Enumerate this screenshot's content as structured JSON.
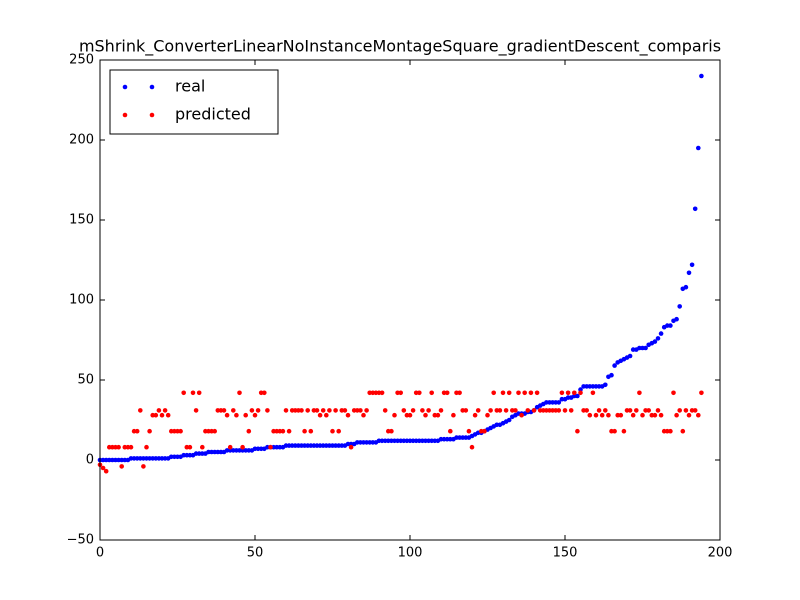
{
  "chart_data": {
    "type": "scatter",
    "title": "mShrink_ConverterLinearNoInstanceMontageSquare_gradientDescent_comparis",
    "xlim": [
      0,
      200
    ],
    "ylim": [
      -50,
      250
    ],
    "xticks": [
      0,
      50,
      100,
      150,
      200
    ],
    "yticks": [
      {
        "value": -50,
        "label": "−50"
      },
      0,
      50,
      100,
      150,
      200,
      250
    ],
    "legend": "upper left",
    "x": [
      0,
      1,
      2,
      3,
      4,
      5,
      6,
      7,
      8,
      9,
      10,
      11,
      12,
      13,
      14,
      15,
      16,
      17,
      18,
      19,
      20,
      21,
      22,
      23,
      24,
      25,
      26,
      27,
      28,
      29,
      30,
      31,
      32,
      33,
      34,
      35,
      36,
      37,
      38,
      39,
      40,
      41,
      42,
      43,
      44,
      45,
      46,
      47,
      48,
      49,
      50,
      51,
      52,
      53,
      54,
      55,
      56,
      57,
      58,
      59,
      60,
      61,
      62,
      63,
      64,
      65,
      66,
      67,
      68,
      69,
      70,
      71,
      72,
      73,
      74,
      75,
      76,
      77,
      78,
      79,
      80,
      81,
      82,
      83,
      84,
      85,
      86,
      87,
      88,
      89,
      90,
      91,
      92,
      93,
      94,
      95,
      96,
      97,
      98,
      99,
      100,
      101,
      102,
      103,
      104,
      105,
      106,
      107,
      108,
      109,
      110,
      111,
      112,
      113,
      114,
      115,
      116,
      117,
      118,
      119,
      120,
      121,
      122,
      123,
      124,
      125,
      126,
      127,
      128,
      129,
      130,
      131,
      132,
      133,
      134,
      135,
      136,
      137,
      138,
      139,
      140,
      141,
      142,
      143,
      144,
      145,
      146,
      147,
      148,
      149,
      150,
      151,
      152,
      153,
      154,
      155,
      156,
      157,
      158,
      159,
      160,
      161,
      162,
      163,
      164,
      165,
      166,
      167,
      168,
      169,
      170,
      171,
      172,
      173,
      174,
      175,
      176,
      177,
      178,
      179,
      180,
      181,
      182,
      183,
      184,
      185,
      186,
      187,
      188,
      189,
      190,
      191,
      192,
      193,
      194
    ],
    "series": [
      {
        "name": "real",
        "color": "#0000ff",
        "values": [
          0,
          0,
          0,
          0,
          0,
          0,
          0,
          0,
          0,
          0,
          1,
          1,
          1,
          1,
          1,
          1,
          1,
          1,
          1,
          1,
          1,
          1,
          1,
          2,
          2,
          2,
          2,
          3,
          3,
          3,
          3,
          4,
          4,
          4,
          4,
          5,
          5,
          5,
          5,
          5,
          5,
          6,
          6,
          6,
          6,
          6,
          6,
          6,
          6,
          6,
          7,
          7,
          7,
          7,
          8,
          8,
          8,
          8,
          8,
          8,
          9,
          9,
          9,
          9,
          9,
          9,
          9,
          9,
          9,
          9,
          9,
          9,
          9,
          9,
          9,
          9,
          9,
          9,
          9,
          9,
          10,
          10,
          10,
          11,
          11,
          11,
          11,
          11,
          11,
          11,
          12,
          12,
          12,
          12,
          12,
          12,
          12,
          12,
          12,
          12,
          12,
          12,
          12,
          12,
          12,
          12,
          12,
          12,
          12,
          12,
          13,
          13,
          13,
          13,
          13,
          14,
          14,
          14,
          14,
          14,
          15,
          16,
          17,
          17,
          18,
          19,
          20,
          21,
          22,
          22,
          23,
          24,
          25,
          27,
          28,
          29,
          29,
          29,
          30,
          30,
          31,
          33,
          34,
          35,
          36,
          36,
          36,
          36,
          36,
          38,
          38,
          39,
          39,
          40,
          40,
          44,
          46,
          46,
          46,
          46,
          46,
          46,
          46,
          47,
          52,
          53,
          59,
          61,
          62,
          63,
          64,
          65,
          69,
          69,
          70,
          70,
          70,
          72,
          73,
          74,
          76,
          79,
          83,
          84,
          84,
          87,
          88,
          96,
          107,
          108,
          117,
          122,
          157,
          195,
          240
        ]
      },
      {
        "name": "predicted",
        "color": "#ff0000",
        "values": [
          -3,
          -5,
          -7,
          8,
          8,
          8,
          8,
          -4,
          8,
          8,
          8,
          18,
          18,
          31,
          -4,
          8,
          18,
          28,
          28,
          31,
          28,
          31,
          28,
          18,
          18,
          18,
          18,
          42,
          8,
          8,
          42,
          31,
          42,
          8,
          18,
          18,
          18,
          18,
          31,
          31,
          31,
          28,
          8,
          31,
          28,
          42,
          8,
          28,
          18,
          31,
          28,
          31,
          42,
          42,
          31,
          8,
          18,
          18,
          18,
          18,
          31,
          18,
          31,
          31,
          31,
          31,
          18,
          31,
          18,
          31,
          31,
          28,
          31,
          28,
          31,
          18,
          31,
          18,
          31,
          31,
          28,
          8,
          31,
          31,
          31,
          28,
          31,
          42,
          42,
          42,
          42,
          42,
          31,
          18,
          18,
          28,
          42,
          42,
          31,
          28,
          28,
          31,
          42,
          42,
          31,
          28,
          31,
          42,
          28,
          28,
          31,
          42,
          42,
          18,
          28,
          42,
          42,
          31,
          31,
          18,
          8,
          28,
          31,
          18,
          18,
          28,
          31,
          42,
          31,
          31,
          42,
          31,
          42,
          31,
          31,
          42,
          28,
          42,
          31,
          42,
          31,
          42,
          31,
          31,
          31,
          31,
          31,
          31,
          31,
          42,
          31,
          42,
          31,
          42,
          18,
          42,
          31,
          31,
          28,
          42,
          28,
          31,
          28,
          31,
          28,
          18,
          18,
          28,
          28,
          18,
          31,
          31,
          28,
          31,
          42,
          28,
          31,
          31,
          28,
          28,
          31,
          28,
          18,
          18,
          18,
          42,
          28,
          31,
          18,
          31,
          28,
          31,
          31,
          28,
          42
        ]
      }
    ]
  }
}
